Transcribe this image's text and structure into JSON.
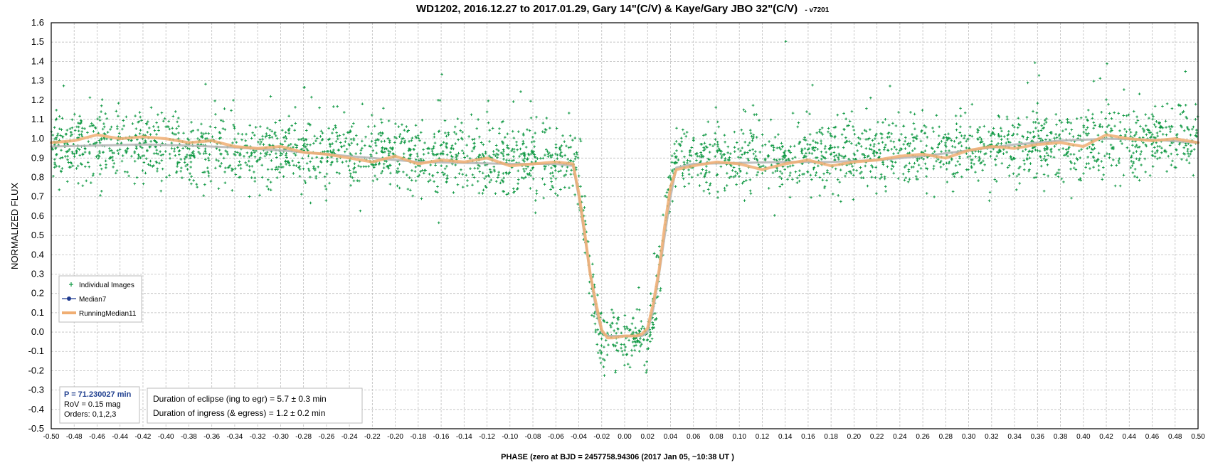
{
  "chart_data": {
    "type": "scatter",
    "title": "WD1202, 2016.12.27  to 2017.01.29,  Gary 14\"(C/V) & Kaye/Gary  JBO 32\"(C/V)",
    "title_suffix": "- v7201",
    "xlabel": "PHASE (zero at  BJD =  2457758.94306 (2017 Jan 05, ~10:38 UT )",
    "ylabel": "NORMALIZED  FLUX",
    "xlim": [
      -0.5,
      0.5
    ],
    "ylim": [
      -0.5,
      1.6
    ],
    "x_tick_step": 0.02,
    "y_tick_step": 0.1,
    "grid": true,
    "legend_position": "bottom-left",
    "legend": [
      {
        "name": "Individual Images",
        "marker": "plus",
        "color": "#119944"
      },
      {
        "name": "Median7",
        "marker": "line-dot",
        "color": "#1f3a8f"
      },
      {
        "name": "RunningMedian11",
        "marker": "thick-line",
        "color": "#f0ae73"
      }
    ],
    "individual_images": {
      "description_of_model": "scatter of per-image normalized flux",
      "color": "#119944",
      "point_count": 3200,
      "scatter_sigma": 0.09,
      "out_of_eclipse_flux_left": 0.97,
      "out_of_eclipse_flux_mid": 0.88,
      "out_of_eclipse_flux_right": 1.0,
      "eclipse_floor": -0.03,
      "ingress_phase": [
        -0.043,
        -0.022
      ],
      "egress_phase": [
        0.022,
        0.043
      ]
    },
    "series": [
      {
        "name": "Median7",
        "color": "#b8b8b8",
        "x": [
          -0.5,
          -0.46,
          -0.42,
          -0.38,
          -0.34,
          -0.3,
          -0.26,
          -0.22,
          -0.18,
          -0.14,
          -0.1,
          -0.06,
          -0.045,
          -0.04,
          -0.035,
          -0.03,
          -0.025,
          -0.02,
          -0.015,
          -0.01,
          0.0,
          0.01,
          0.015,
          0.02,
          0.025,
          0.03,
          0.035,
          0.04,
          0.045,
          0.06,
          0.1,
          0.14,
          0.18,
          0.22,
          0.26,
          0.3,
          0.34,
          0.38,
          0.42,
          0.46,
          0.5
        ],
        "y": [
          0.96,
          0.965,
          0.97,
          0.965,
          0.955,
          0.94,
          0.92,
          0.9,
          0.88,
          0.875,
          0.87,
          0.87,
          0.86,
          0.7,
          0.5,
          0.3,
          0.12,
          0.0,
          -0.02,
          -0.02,
          -0.02,
          -0.02,
          -0.02,
          0.0,
          0.12,
          0.3,
          0.5,
          0.7,
          0.85,
          0.87,
          0.875,
          0.88,
          0.88,
          0.89,
          0.91,
          0.94,
          0.97,
          0.99,
          1.0,
          0.995,
          0.98
        ]
      },
      {
        "name": "RunningMedian11",
        "color": "#f0ae73",
        "x": [
          -0.5,
          -0.48,
          -0.46,
          -0.44,
          -0.42,
          -0.4,
          -0.38,
          -0.36,
          -0.34,
          -0.32,
          -0.3,
          -0.28,
          -0.26,
          -0.24,
          -0.22,
          -0.2,
          -0.18,
          -0.16,
          -0.14,
          -0.12,
          -0.1,
          -0.08,
          -0.06,
          -0.045,
          -0.04,
          -0.035,
          -0.03,
          -0.025,
          -0.02,
          -0.015,
          -0.01,
          0.0,
          0.01,
          0.015,
          0.02,
          0.025,
          0.03,
          0.035,
          0.04,
          0.045,
          0.06,
          0.08,
          0.1,
          0.12,
          0.14,
          0.16,
          0.18,
          0.2,
          0.22,
          0.24,
          0.26,
          0.28,
          0.3,
          0.32,
          0.34,
          0.36,
          0.38,
          0.4,
          0.42,
          0.44,
          0.46,
          0.48,
          0.5
        ],
        "y": [
          0.98,
          0.99,
          1.02,
          1.0,
          1.01,
          1.0,
          0.98,
          0.99,
          0.96,
          0.95,
          0.96,
          0.93,
          0.92,
          0.9,
          0.88,
          0.91,
          0.87,
          0.89,
          0.88,
          0.9,
          0.86,
          0.87,
          0.88,
          0.87,
          0.72,
          0.52,
          0.3,
          0.15,
          0.01,
          -0.03,
          -0.03,
          -0.02,
          -0.02,
          -0.01,
          0.02,
          0.15,
          0.32,
          0.55,
          0.75,
          0.84,
          0.86,
          0.88,
          0.87,
          0.84,
          0.87,
          0.89,
          0.86,
          0.88,
          0.89,
          0.91,
          0.92,
          0.9,
          0.94,
          0.96,
          0.95,
          0.97,
          0.98,
          0.96,
          1.02,
          1.0,
          0.99,
          1.0,
          0.98
        ]
      }
    ]
  },
  "info_box": {
    "period": "P = 71.230027 min",
    "rov": "RoV = 0.15 mag",
    "orders": "Orders: 0,1,2,3"
  },
  "duration_box": {
    "line1": "Duration of eclipse  (ing to egr) = 5.7 ± 0.3 min",
    "line2": "Duration of ingress (& egress)   = 1.2 ± 0.2 min"
  }
}
